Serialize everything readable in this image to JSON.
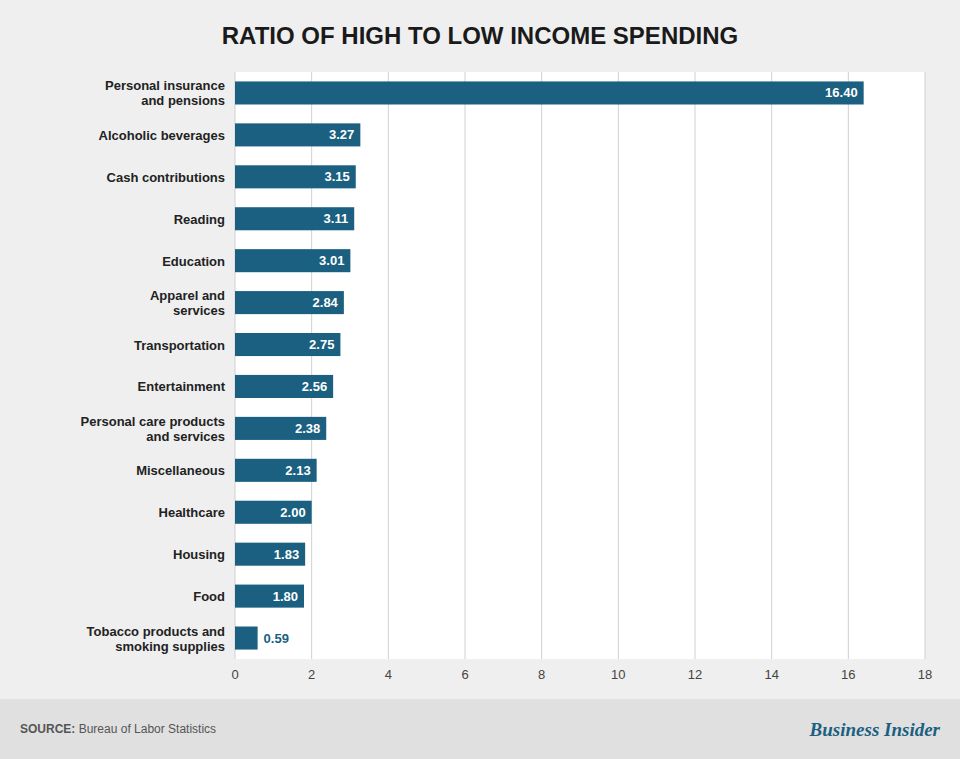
{
  "chart_data": {
    "type": "bar",
    "orientation": "horizontal",
    "title": "RATIO OF HIGH TO LOW INCOME SPENDING",
    "categories": [
      "Tobacco products and\nsmoking supplies",
      "Food",
      "Housing",
      "Healthcare",
      "Miscellaneous",
      "Personal care products\nand services",
      "Entertainment",
      "Transportation",
      "Apparel and\nservices",
      "Education",
      "Reading",
      "Cash contributions",
      "Alcoholic beverages",
      "Personal insurance\nand pensions"
    ],
    "values": [
      0.59,
      1.8,
      1.83,
      2.0,
      2.13,
      2.38,
      2.56,
      2.75,
      2.84,
      3.01,
      3.11,
      3.15,
      3.27,
      16.4
    ],
    "value_labels": [
      "0.59",
      "1.80",
      "1.83",
      "2.00",
      "2.13",
      "2.38",
      "2.56",
      "2.75",
      "2.84",
      "3.01",
      "3.11",
      "3.15",
      "3.27",
      "16.40"
    ],
    "data_labels": true,
    "color": "#1b6080",
    "xlim": [
      0,
      18
    ],
    "xticks": [
      0,
      2,
      4,
      6,
      8,
      10,
      12,
      14,
      16,
      18
    ],
    "grid": true,
    "annotations": [
      "SOURCE:",
      " Bureau of Labor Statistics",
      "Business Insider"
    ]
  }
}
